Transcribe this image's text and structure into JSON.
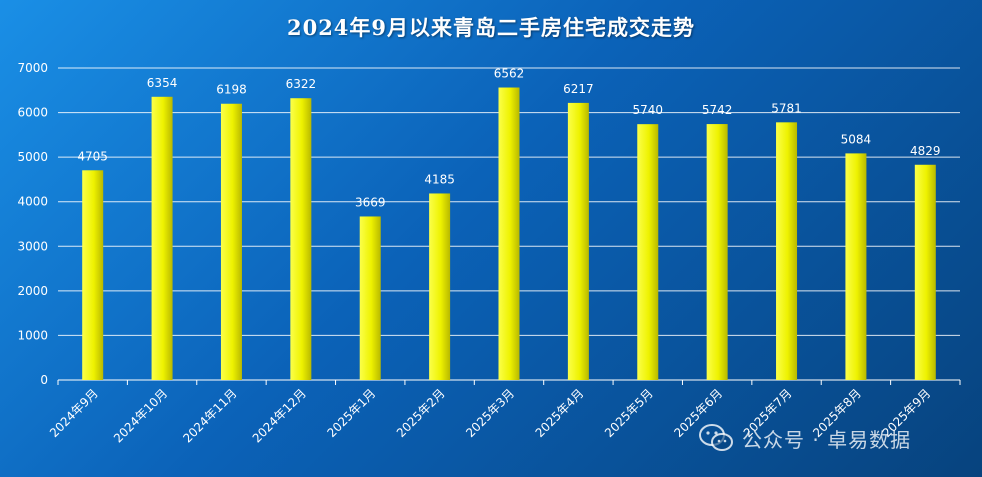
{
  "chart_data": {
    "type": "bar",
    "title": "2024年9月以来青岛二手房住宅成交走势",
    "categories": [
      "2024年9月",
      "2024年10月",
      "2024年11月",
      "2024年12月",
      "2025年1月",
      "2025年2月",
      "2025年3月",
      "2025年4月",
      "2025年5月",
      "2025年6月",
      "2025年7月",
      "2025年8月",
      "2025年9月"
    ],
    "values": [
      4705,
      6354,
      6198,
      6322,
      3669,
      4185,
      6562,
      6217,
      5740,
      5742,
      5781,
      5084,
      4829
    ],
    "yticks": [
      0,
      1000,
      2000,
      3000,
      4000,
      5000,
      6000,
      7000
    ],
    "ylim": [
      0,
      7000
    ],
    "grid": true,
    "data_labels": true,
    "colors": {
      "bar_light": "#fbff4a",
      "bar_dark": "#b8b800",
      "label": "#ffffff"
    }
  },
  "watermark": {
    "icon": "wechat-icon",
    "text": "公众号 · 卓易数据"
  }
}
